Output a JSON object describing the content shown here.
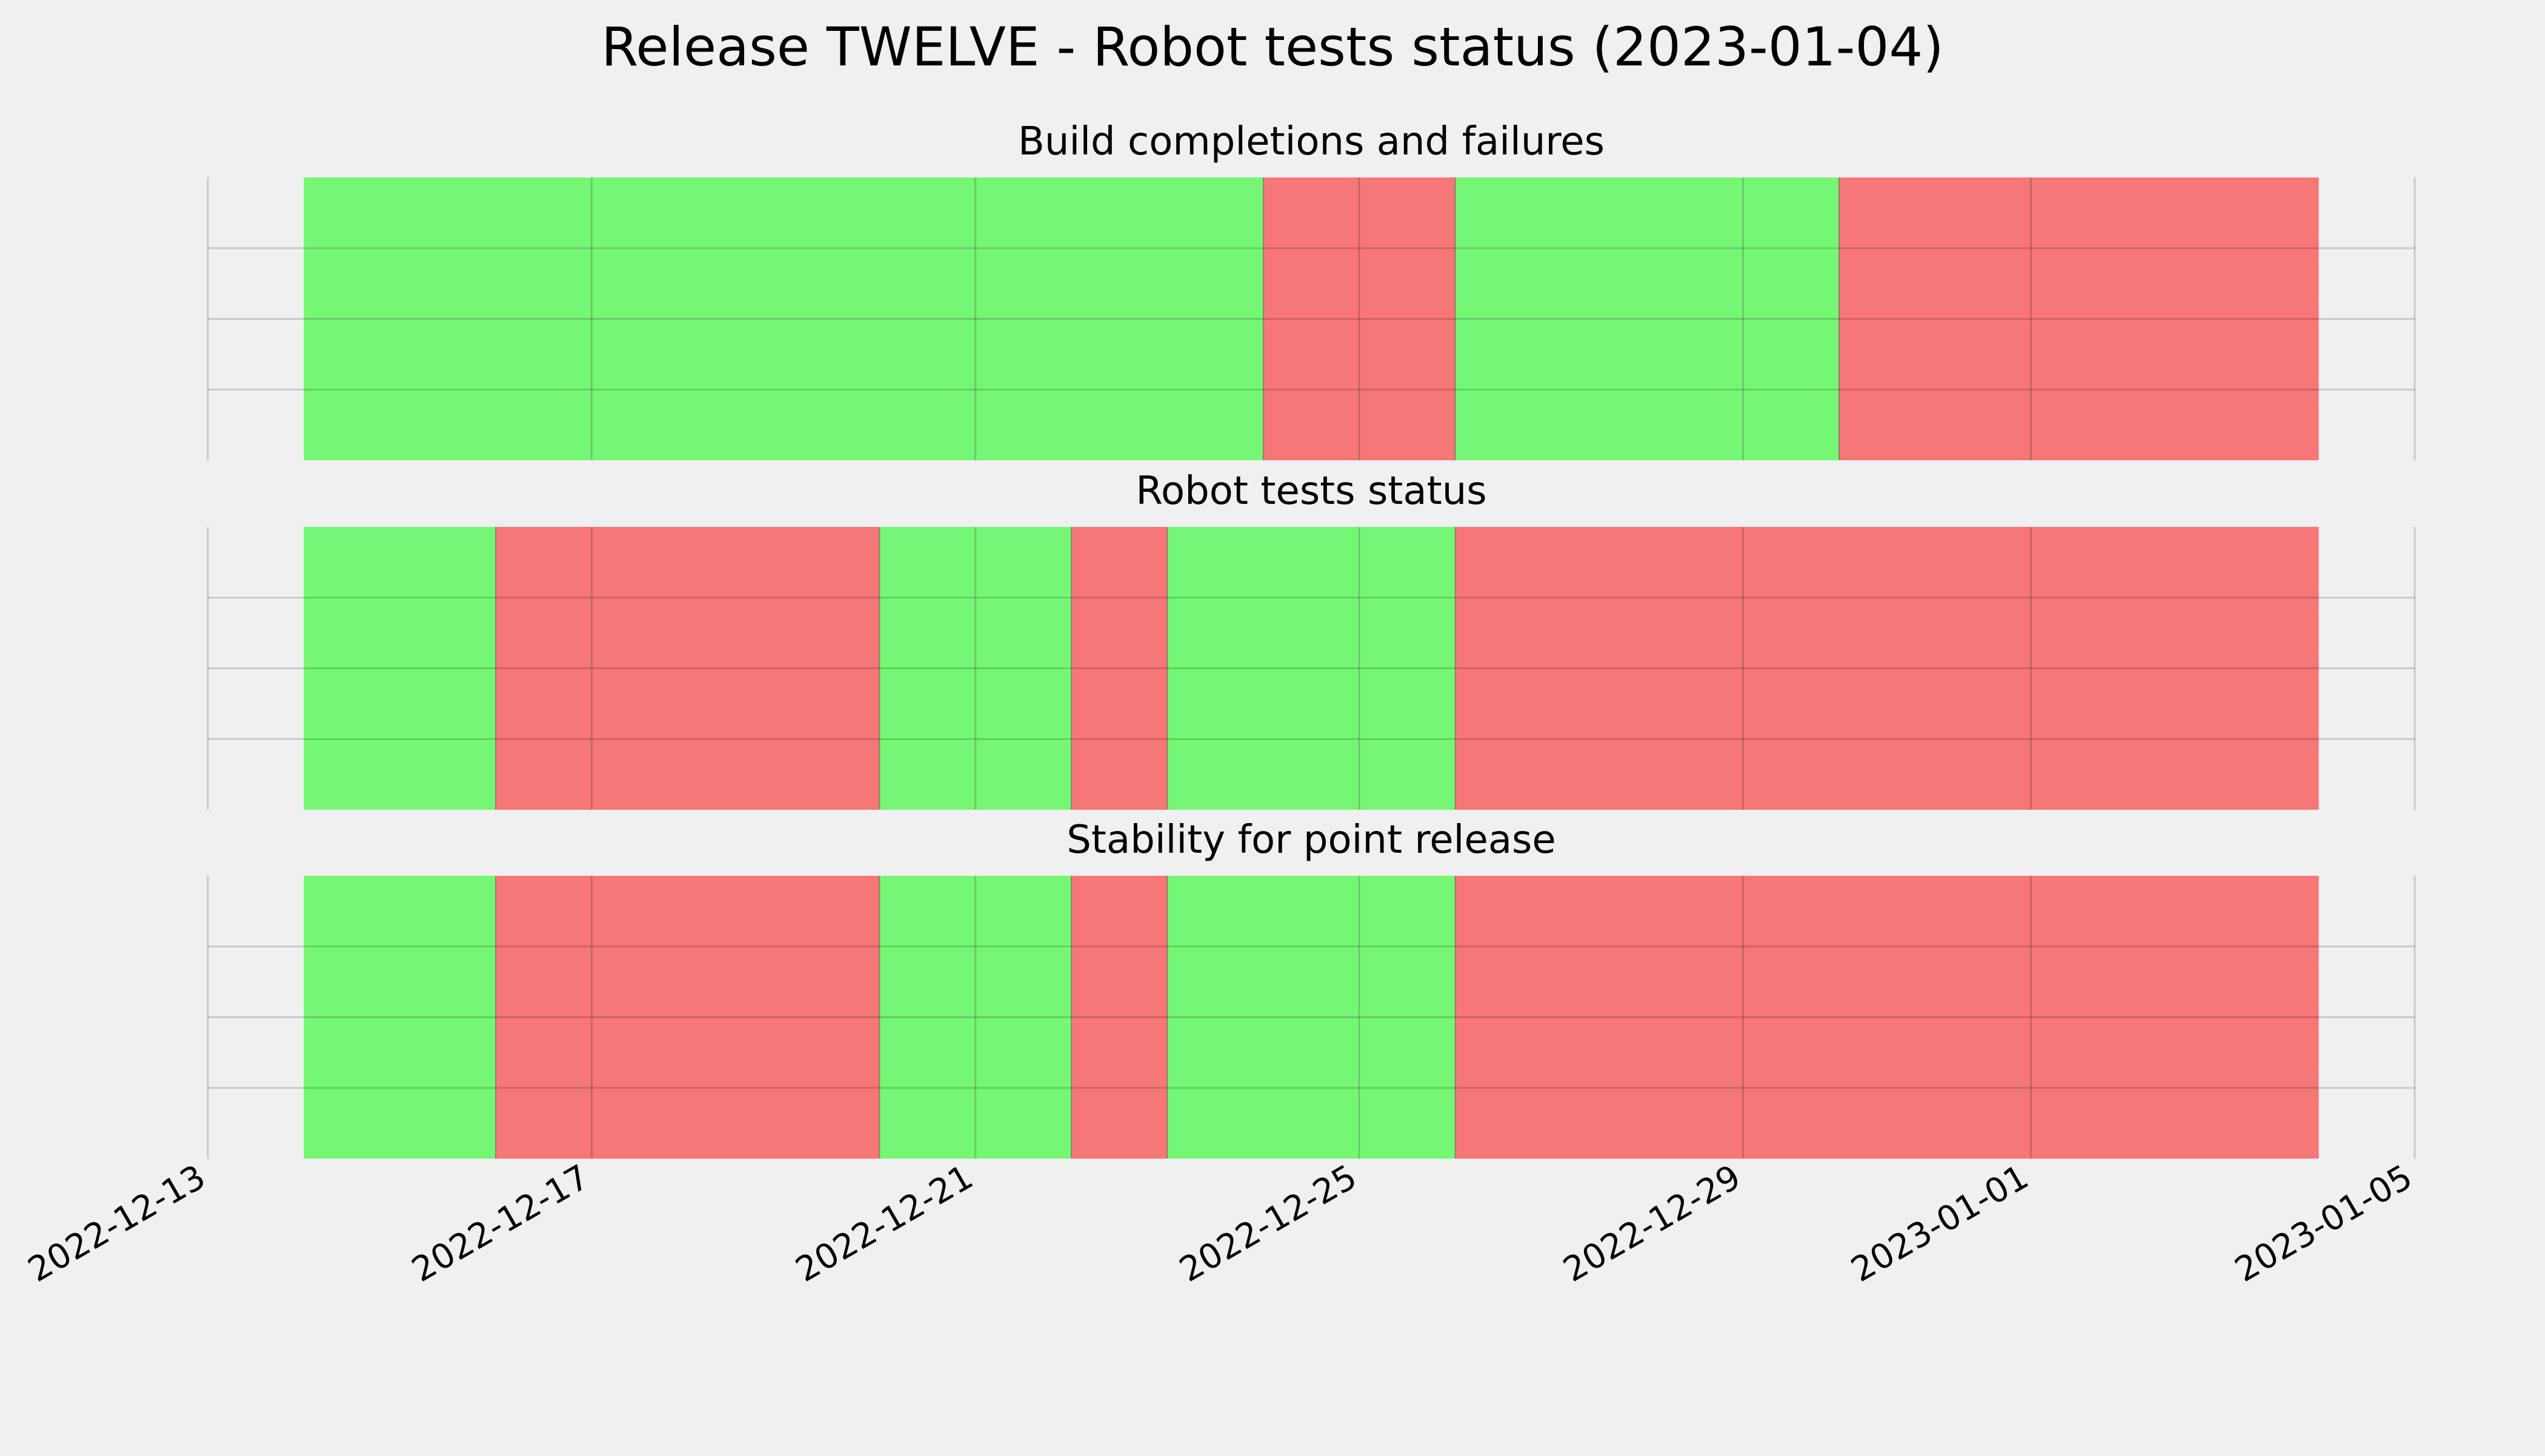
{
  "colors": {
    "background": "#f0f0f0",
    "pass": "#75f775",
    "fail": "#f67777",
    "grid": "#cbcbcb",
    "boundary": "#555555"
  },
  "chart_data": {
    "type": "timeline",
    "title": "Release TWELVE - Robot tests status (2023-01-04)",
    "x_axis": {
      "type": "date",
      "range": [
        "2022-12-13",
        "2023-01-05"
      ],
      "ticks": [
        "2022-12-13",
        "2022-12-17",
        "2022-12-21",
        "2022-12-25",
        "2022-12-29",
        "2023-01-01",
        "2023-01-05"
      ],
      "tick_label_rotation": 30,
      "grid": true
    },
    "y_axis": {
      "tick_labels": false,
      "grid": true
    },
    "panels": [
      {
        "title": "Build completions and failures",
        "segments": [
          {
            "start": "2022-12-14",
            "end": "2022-12-24",
            "status": "pass"
          },
          {
            "start": "2022-12-24",
            "end": "2022-12-26",
            "status": "fail"
          },
          {
            "start": "2022-12-26",
            "end": "2022-12-30",
            "status": "pass"
          },
          {
            "start": "2022-12-30",
            "end": "2023-01-04",
            "status": "fail"
          }
        ]
      },
      {
        "title": "Robot tests status",
        "segments": [
          {
            "start": "2022-12-14",
            "end": "2022-12-16",
            "status": "pass"
          },
          {
            "start": "2022-12-16",
            "end": "2022-12-20",
            "status": "fail"
          },
          {
            "start": "2022-12-20",
            "end": "2022-12-22",
            "status": "pass"
          },
          {
            "start": "2022-12-22",
            "end": "2022-12-23",
            "status": "fail"
          },
          {
            "start": "2022-12-23",
            "end": "2022-12-26",
            "status": "pass"
          },
          {
            "start": "2022-12-26",
            "end": "2023-01-04",
            "status": "fail"
          }
        ]
      },
      {
        "title": "Stability for point release",
        "segments": [
          {
            "start": "2022-12-14",
            "end": "2022-12-16",
            "status": "pass"
          },
          {
            "start": "2022-12-16",
            "end": "2022-12-20",
            "status": "fail"
          },
          {
            "start": "2022-12-20",
            "end": "2022-12-22",
            "status": "pass"
          },
          {
            "start": "2022-12-22",
            "end": "2022-12-23",
            "status": "fail"
          },
          {
            "start": "2022-12-23",
            "end": "2022-12-26",
            "status": "pass"
          },
          {
            "start": "2022-12-26",
            "end": "2023-01-04",
            "status": "fail"
          }
        ]
      }
    ]
  }
}
